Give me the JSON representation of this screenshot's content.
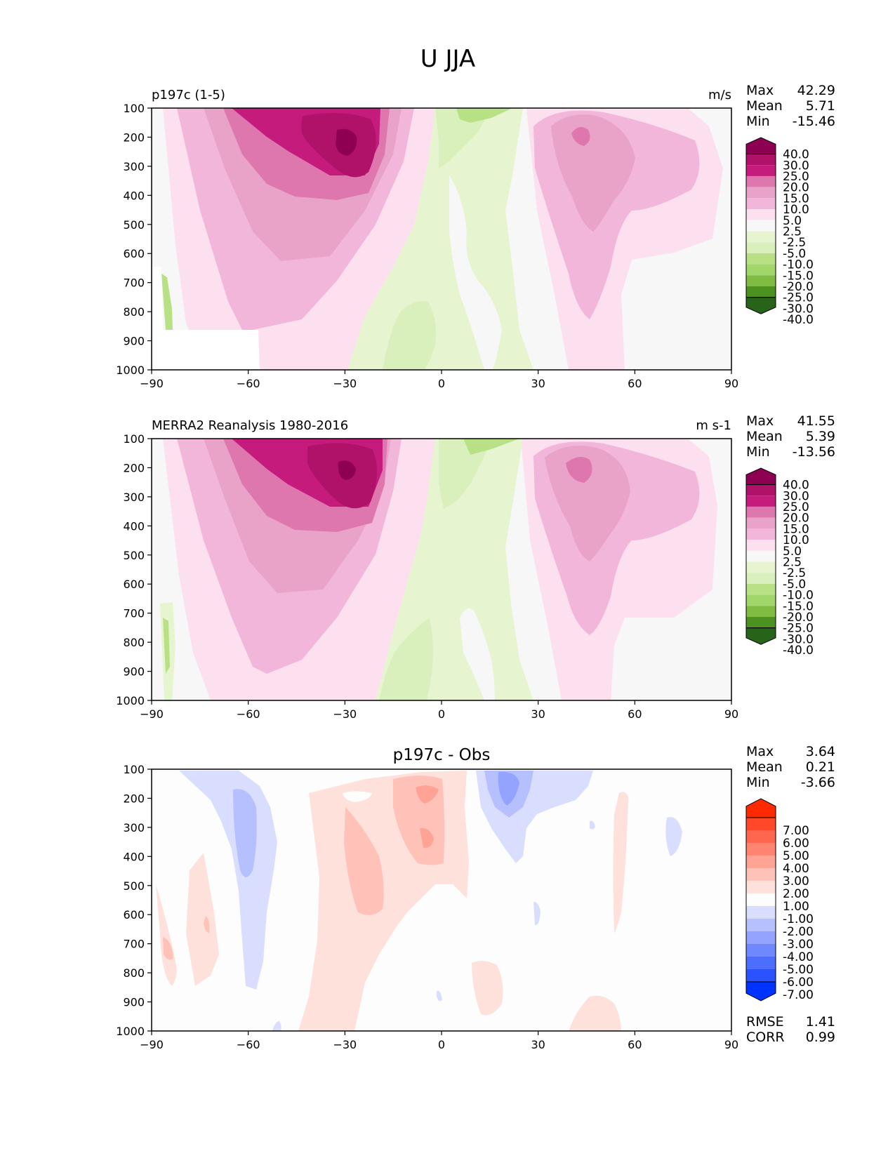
{
  "figure_title": "U JJA",
  "colors": {
    "wind_levels": [
      "#276419",
      "#4d9221",
      "#7fbc41",
      "#a1d76a",
      "#b8e186",
      "#d9f0bc",
      "#e6f5d0",
      "#f7f7f7",
      "#fde0ef",
      "#f1b6da",
      "#e9a3c9",
      "#de77ae",
      "#c51b7d",
      "#b0126a",
      "#8e0152"
    ],
    "diff_levels": [
      "#0033ff",
      "#2a52ff",
      "#4d6dff",
      "#7088ff",
      "#93a3ff",
      "#b6c0ff",
      "#d9deff",
      "#fdfdfd",
      "#ffe1dc",
      "#ffc2b8",
      "#ffa394",
      "#ff8570",
      "#ff664d",
      "#ff4729",
      "#ff2a00"
    ]
  },
  "chart_data": [
    {
      "type": "contour",
      "left_title": "p197c (1-5)",
      "right_title": "m/s",
      "xlabel": "",
      "ylabel": "",
      "xlim": [
        -90,
        90
      ],
      "ylim": [
        1000,
        100
      ],
      "xticks": [
        "−90",
        "−60",
        "−30",
        "0",
        "30",
        "60",
        "90"
      ],
      "yticks": [
        "100",
        "200",
        "300",
        "400",
        "500",
        "600",
        "700",
        "800",
        "900",
        "1000"
      ],
      "stats": [
        {
          "label": "Max",
          "value": "42.29"
        },
        {
          "label": "Mean",
          "value": "5.71"
        },
        {
          "label": "Min",
          "value": "-15.46"
        }
      ],
      "colorbar_labels": [
        "40.0",
        "30.0",
        "25.0",
        "20.0",
        "15.0",
        "10.0",
        "5.0",
        "2.5",
        "-2.5",
        "-5.0",
        "-10.0",
        "-15.0",
        "-20.0",
        "-25.0",
        "-30.0",
        "-40.0"
      ],
      "features": [
        {
          "name": "sh-jet",
          "lat": -30,
          "p": 200,
          "value": 40,
          "rlat": 30,
          "rp": 450
        },
        {
          "name": "nh-jet",
          "lat": 45,
          "p": 200,
          "value": 25,
          "rlat": 22,
          "rp": 380
        },
        {
          "name": "tropical-easterlies",
          "lat": 8,
          "p": 250,
          "value": -10,
          "rlat": 12,
          "rp": 400
        },
        {
          "name": "low-level-easterlies",
          "lat": -10,
          "p": 900,
          "value": -8,
          "rlat": 10,
          "rp": 200
        }
      ]
    },
    {
      "type": "contour",
      "left_title": "MERRA2 Reanalysis 1980-2016",
      "right_title": "m s-1",
      "xlabel": "",
      "ylabel": "",
      "xlim": [
        -90,
        90
      ],
      "ylim": [
        1000,
        100
      ],
      "xticks": [
        "−90",
        "−60",
        "−30",
        "0",
        "30",
        "60",
        "90"
      ],
      "yticks": [
        "100",
        "200",
        "300",
        "400",
        "500",
        "600",
        "700",
        "800",
        "900",
        "1000"
      ],
      "stats": [
        {
          "label": "Max",
          "value": "41.55"
        },
        {
          "label": "Mean",
          "value": "5.39"
        },
        {
          "label": "Min",
          "value": "-13.56"
        }
      ],
      "colorbar_labels": [
        "40.0",
        "30.0",
        "25.0",
        "20.0",
        "15.0",
        "10.0",
        "5.0",
        "2.5",
        "-2.5",
        "-5.0",
        "-10.0",
        "-15.0",
        "-20.0",
        "-25.0",
        "-30.0",
        "-40.0"
      ],
      "features": [
        {
          "name": "sh-jet",
          "lat": -30,
          "p": 200,
          "value": 40,
          "rlat": 30,
          "rp": 450
        },
        {
          "name": "nh-jet",
          "lat": 45,
          "p": 200,
          "value": 25,
          "rlat": 22,
          "rp": 380
        },
        {
          "name": "tropical-easterlies",
          "lat": 5,
          "p": 250,
          "value": -10,
          "rlat": 14,
          "rp": 400
        },
        {
          "name": "low-level-easterlies",
          "lat": -10,
          "p": 900,
          "value": -8,
          "rlat": 10,
          "rp": 200
        }
      ]
    },
    {
      "type": "contour",
      "title": "p197c - Obs",
      "xlabel": "",
      "ylabel": "",
      "xlim": [
        -90,
        90
      ],
      "ylim": [
        1000,
        100
      ],
      "xticks": [
        "−90",
        "−60",
        "−30",
        "0",
        "30",
        "60",
        "90"
      ],
      "yticks": [
        "100",
        "200",
        "300",
        "400",
        "500",
        "600",
        "700",
        "800",
        "900",
        "1000"
      ],
      "stats": [
        {
          "label": "Max",
          "value": "3.64"
        },
        {
          "label": "Mean",
          "value": "0.21"
        },
        {
          "label": "Min",
          "value": "-3.66"
        }
      ],
      "metrics": [
        {
          "label": "RMSE",
          "value": "1.41"
        },
        {
          "label": "CORR",
          "value": "0.99"
        }
      ],
      "colorbar_labels": [
        "7.00",
        "6.00",
        "5.00",
        "4.00",
        "3.00",
        "2.00",
        "1.00",
        "-1.00",
        "-2.00",
        "-3.00",
        "-4.00",
        "-5.00",
        "-6.00",
        "-7.00"
      ],
      "features": [
        {
          "name": "pos-subtropics",
          "lat": -5,
          "p": 250,
          "value": 3,
          "rlat": 8,
          "rp": 120
        },
        {
          "name": "pos-midlevel",
          "lat": -25,
          "p": 450,
          "value": 2,
          "rlat": 8,
          "rp": 200
        },
        {
          "name": "neg-sh",
          "lat": -57,
          "p": 300,
          "value": -2,
          "rlat": 6,
          "rp": 200
        },
        {
          "name": "neg-tropics",
          "lat": 22,
          "p": 150,
          "value": -3,
          "rlat": 8,
          "rp": 100
        }
      ]
    }
  ]
}
